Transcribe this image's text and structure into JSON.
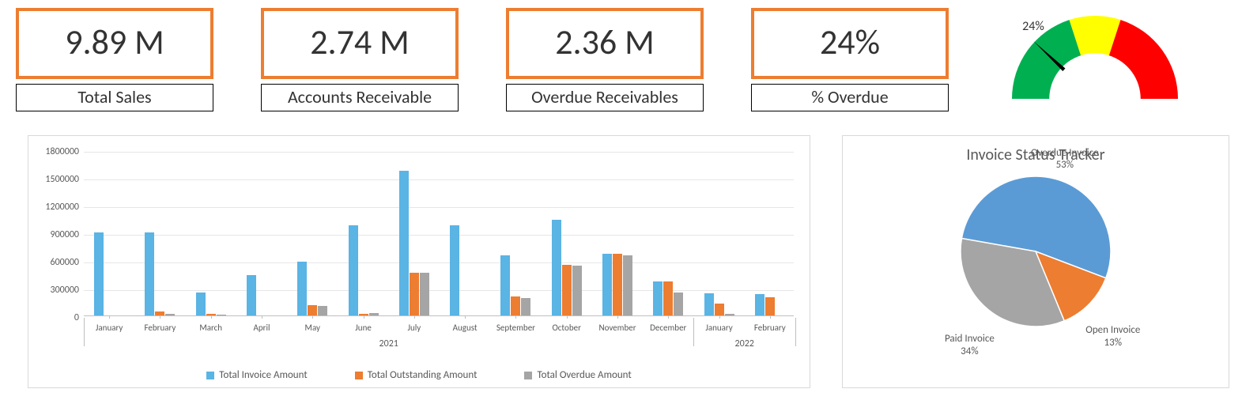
{
  "kpi": {
    "accent_color": "#ed7d31",
    "cards": [
      {
        "value": "9.89 M",
        "label": "Total Sales"
      },
      {
        "value": "2.74 M",
        "label": "Accounts Receivable"
      },
      {
        "value": "2.36 M",
        "label": "Overdue Receivables"
      },
      {
        "value": "24%",
        "label": "% Overdue"
      }
    ]
  },
  "gauge": {
    "type": "gauge",
    "value_pct": 24,
    "value_label": "24%",
    "segments": [
      {
        "from": 0,
        "to": 40,
        "color": "#00b050"
      },
      {
        "from": 40,
        "to": 60,
        "color": "#ffff00"
      },
      {
        "from": 60,
        "to": 100,
        "color": "#ff0000"
      }
    ],
    "needle_color": "#000000",
    "background_color": "#ffffff",
    "inner_radius_pct": 55
  },
  "bar_chart": {
    "type": "bar",
    "y_max": 1800000,
    "y_tick_step": 300000,
    "series": [
      {
        "name": "Total Invoice Amount",
        "color": "#5ab4e4"
      },
      {
        "name": "Total Outstanding Amount",
        "color": "#ed7d31"
      },
      {
        "name": "Total Overdue Amount",
        "color": "#a5a5a5"
      }
    ],
    "year_groups": [
      {
        "year": "2021",
        "count": 12
      },
      {
        "year": "2022",
        "count": 2
      }
    ],
    "categories": [
      {
        "label": "January",
        "values": [
          900000,
          0,
          0
        ]
      },
      {
        "label": "February",
        "values": [
          900000,
          40000,
          20000
        ]
      },
      {
        "label": "March",
        "values": [
          250000,
          20000,
          10000
        ]
      },
      {
        "label": "April",
        "values": [
          440000,
          0,
          0
        ]
      },
      {
        "label": "May",
        "values": [
          580000,
          110000,
          100000
        ]
      },
      {
        "label": "June",
        "values": [
          980000,
          20000,
          30000
        ]
      },
      {
        "label": "July",
        "values": [
          1570000,
          460000,
          460000
        ]
      },
      {
        "label": "August",
        "values": [
          980000,
          0,
          0
        ]
      },
      {
        "label": "September",
        "values": [
          650000,
          210000,
          190000
        ]
      },
      {
        "label": "October",
        "values": [
          1040000,
          550000,
          540000
        ]
      },
      {
        "label": "November",
        "values": [
          670000,
          670000,
          650000
        ]
      },
      {
        "label": "December",
        "values": [
          370000,
          370000,
          250000
        ]
      },
      {
        "label": "January",
        "values": [
          240000,
          130000,
          20000
        ]
      },
      {
        "label": "February",
        "values": [
          230000,
          200000,
          0
        ]
      }
    ],
    "grid_color": "#e6e6e6",
    "axis_color": "#bfbfbf",
    "background_color": "#ffffff"
  },
  "pie_chart": {
    "type": "pie",
    "title": "Invoice Status Tracker",
    "slices": [
      {
        "label": "Overdue Invoice",
        "pct": 53,
        "color": "#5b9bd5"
      },
      {
        "label": "Open Invoice",
        "pct": 13,
        "color": "#ed7d31"
      },
      {
        "label": "Paid Invoice",
        "pct": 34,
        "color": "#a5a5a5"
      }
    ],
    "start_angle_deg": -80,
    "background_color": "#ffffff"
  }
}
